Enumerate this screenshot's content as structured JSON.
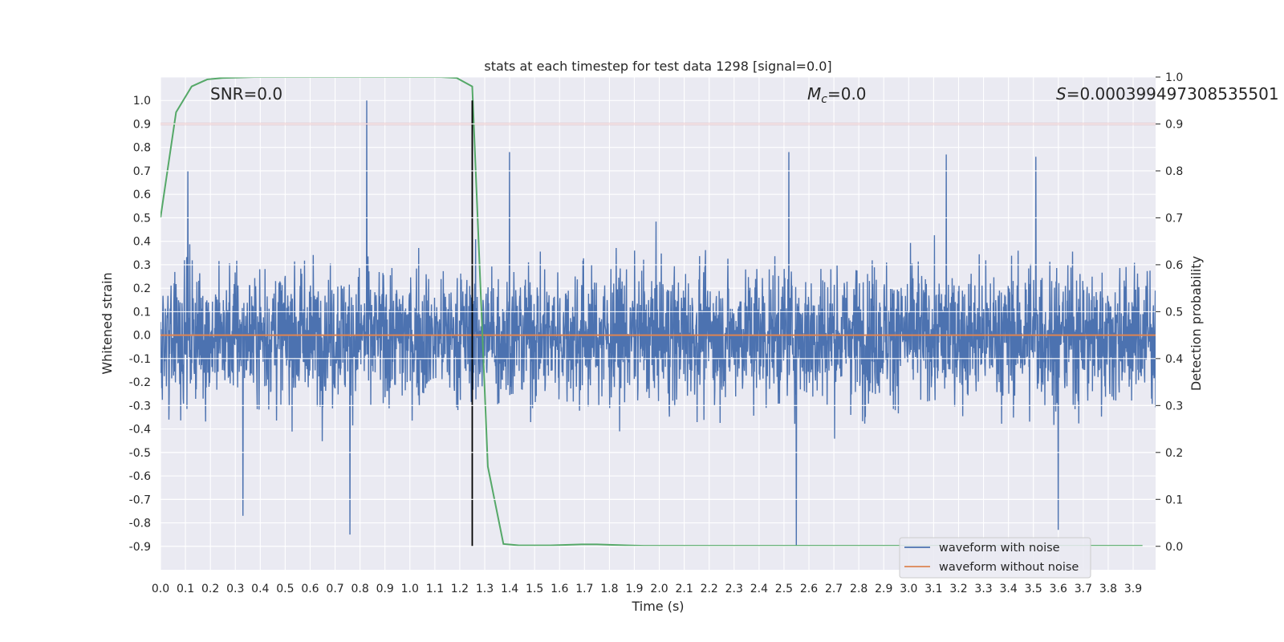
{
  "chart_data": {
    "type": "line",
    "title": "stats at each timestep for test data 1298 [signal=0.0]",
    "xlabel": "Time (s)",
    "ylabel": "Whitened strain",
    "y2label": "Detection probability",
    "xlim": [
      0.0,
      3.99
    ],
    "ylim": [
      -1.0,
      1.1
    ],
    "y2lim": [
      -0.05,
      1.0
    ],
    "xticks": [
      "0.0",
      "0.1",
      "0.2",
      "0.3",
      "0.4",
      "0.5",
      "0.6",
      "0.7",
      "0.8",
      "0.9",
      "1.0",
      "1.1",
      "1.2",
      "1.3",
      "1.4",
      "1.5",
      "1.6",
      "1.7",
      "1.8",
      "1.9",
      "2.0",
      "2.1",
      "2.2",
      "2.3",
      "2.4",
      "2.5",
      "2.6",
      "2.7",
      "2.8",
      "2.9",
      "3.0",
      "3.1",
      "3.2",
      "3.3",
      "3.4",
      "3.5",
      "3.6",
      "3.7",
      "3.8",
      "3.9"
    ],
    "yticks": [
      "1.0",
      "0.9",
      "0.8",
      "0.7",
      "0.6",
      "0.5",
      "0.4",
      "0.3",
      "0.2",
      "0.1",
      "0.0",
      "-0.1",
      "-0.2",
      "-0.3",
      "-0.4",
      "-0.5",
      "-0.6",
      "-0.7",
      "-0.8",
      "-0.9"
    ],
    "y2ticks": [
      "1.0",
      "0.9",
      "0.8",
      "0.7",
      "0.6",
      "0.5",
      "0.4",
      "0.3",
      "0.2",
      "0.1",
      "0.0"
    ],
    "grid": true,
    "legend_position": "lower-right",
    "annotations": {
      "snr": "SNR=0.0",
      "mc_symbol": "M",
      "mc_sub": "c",
      "mc_value": "=0.0",
      "s_symbol": "S",
      "s_value": "=0.000399497308535501"
    },
    "series": [
      {
        "name": "waveform with noise",
        "axis": "left",
        "color": "#4c72b0",
        "description_note": "dense noise trace sampled at high rate",
        "peak_values": [
          {
            "x": 0.827,
            "y": 1.0
          },
          {
            "x": 0.11,
            "y": 0.7
          },
          {
            "x": 1.4,
            "y": 0.78
          },
          {
            "x": 2.55,
            "y": -0.9
          },
          {
            "x": 0.33,
            "y": -0.77
          },
          {
            "x": 0.76,
            "y": -0.85
          },
          {
            "x": 3.6,
            "y": -0.83
          },
          {
            "x": 2.52,
            "y": 0.78
          },
          {
            "x": 3.15,
            "y": 0.77
          },
          {
            "x": 3.51,
            "y": 0.76
          }
        ]
      },
      {
        "name": "waveform without noise",
        "axis": "left",
        "color": "#dd8452",
        "x": [
          0.0,
          3.99
        ],
        "y": [
          0.0,
          0.0
        ]
      },
      {
        "name": "",
        "axis": "right",
        "color": "#55a868",
        "x": [
          0.0,
          0.0625,
          0.125,
          0.1875,
          0.25,
          0.3125,
          0.375,
          0.4375,
          0.5,
          0.5625,
          0.625,
          0.6875,
          0.75,
          0.8125,
          0.875,
          0.9375,
          1.0,
          1.0625,
          1.125,
          1.1875,
          1.25,
          1.3125,
          1.375,
          1.4375,
          1.5,
          1.5625,
          1.625,
          1.6875,
          1.75,
          1.8125,
          1.875,
          1.9375,
          2.0,
          2.5,
          3.0,
          3.5,
          3.9375
        ],
        "y": [
          0.7,
          0.925,
          0.98,
          0.995,
          0.998,
          0.999,
          1.0,
          1.0,
          1.0,
          1.0,
          1.0,
          1.0,
          1.0,
          1.0,
          1.0,
          1.0,
          1.0,
          1.0,
          1.0,
          0.998,
          0.98,
          0.17,
          0.005,
          0.002,
          0.002,
          0.002,
          0.003,
          0.004,
          0.004,
          0.003,
          0.002,
          0.001,
          0.001,
          0.001,
          0.001,
          0.001,
          0.001
        ]
      },
      {
        "name": "",
        "axis": "right",
        "color": "#c44e52",
        "x": [
          0.0,
          3.99
        ],
        "y": [
          0.9,
          0.9
        ]
      }
    ],
    "vertical_marker": {
      "x": 1.25,
      "color": "#000000",
      "ylim": [
        -0.9,
        1.0
      ]
    }
  }
}
